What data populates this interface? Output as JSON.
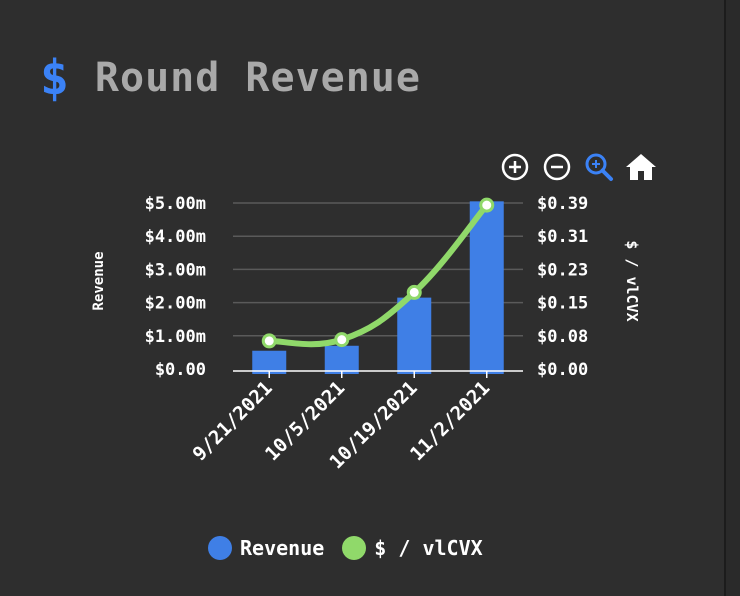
{
  "header": {
    "icon": "$",
    "icon_name": "dollar-icon",
    "icon_color": "#3b82f6",
    "title": "Round Revenue"
  },
  "toolbar": [
    {
      "name": "zoom-in-icon",
      "interactable": true
    },
    {
      "name": "zoom-out-icon",
      "interactable": true
    },
    {
      "name": "zoom-select-icon",
      "interactable": true,
      "active": true
    },
    {
      "name": "home-icon",
      "interactable": true
    }
  ],
  "chart_data": {
    "type": "bar+line",
    "categories": [
      "9/21/2021",
      "10/5/2021",
      "10/19/2021",
      "11/2/2021"
    ],
    "series": [
      {
        "name": "Revenue",
        "type": "bar",
        "axis": "left",
        "color": "#3f7fe6",
        "values": [
          0.55,
          0.7,
          2.15,
          5.05
        ]
      },
      {
        "name": "$ / vlCVX",
        "type": "line",
        "axis": "right",
        "color": "#90d96a",
        "values": [
          0.066,
          0.069,
          0.18,
          0.385
        ]
      }
    ],
    "y_left": {
      "label": "Revenue",
      "ticks": [
        "$5.00m",
        "$4.00m",
        "$3.00m",
        "$2.00m",
        "$1.00m",
        "$0.00"
      ],
      "tick_values": [
        5,
        4,
        3,
        2,
        1,
        0
      ],
      "range": [
        0,
        5
      ]
    },
    "y_right": {
      "label": "$ / vlCVX",
      "ticks": [
        "$0.39",
        "$0.31",
        "$0.23",
        "$0.15",
        "$0.08",
        "$0.00"
      ],
      "tick_values": [
        0.39,
        0.31,
        0.23,
        0.15,
        0.08,
        0
      ],
      "range": [
        0,
        0.39
      ]
    },
    "grid": true,
    "legend_position": "bottom"
  },
  "legend": [
    {
      "label": "Revenue",
      "color": "#3f7fe6"
    },
    {
      "label": "$ / vlCVX",
      "color": "#90d96a"
    }
  ]
}
